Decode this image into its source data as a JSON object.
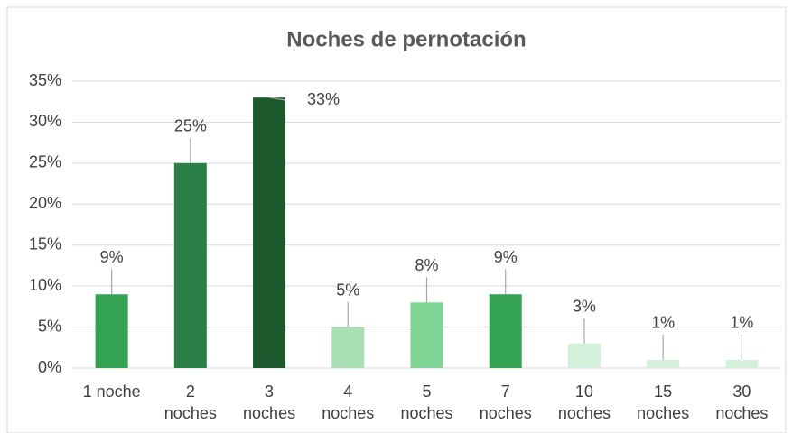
{
  "chart_data": {
    "type": "bar",
    "title": "Noches de pernotación",
    "categories": [
      [
        "1 noche"
      ],
      [
        "2",
        "noches"
      ],
      [
        "3",
        "noches"
      ],
      [
        "4",
        "noches"
      ],
      [
        "5",
        "noches"
      ],
      [
        "7",
        "noches"
      ],
      [
        "10",
        "noches"
      ],
      [
        "15",
        "noches"
      ],
      [
        "30",
        "noches"
      ]
    ],
    "values": [
      9,
      25,
      33,
      5,
      8,
      9,
      3,
      1,
      1
    ],
    "value_labels": [
      "9%",
      "25%",
      "33%",
      "5%",
      "8%",
      "9%",
      "3%",
      "1%",
      "1%"
    ],
    "colors": [
      "#33a352",
      "#2a8046",
      "#1c5a2e",
      "#a8e0b4",
      "#7fd494",
      "#33a352",
      "#d3f0da",
      "#d3f0da",
      "#d3f0da"
    ],
    "ylim": [
      0,
      35
    ],
    "yticks": [
      {
        "value": 0,
        "label": "0%"
      },
      {
        "value": 5,
        "label": "5%"
      },
      {
        "value": 10,
        "label": "10%"
      },
      {
        "value": 15,
        "label": "15%"
      },
      {
        "value": 20,
        "label": "20%"
      },
      {
        "value": 25,
        "label": "25%"
      },
      {
        "value": 30,
        "label": "30%"
      },
      {
        "value": 35,
        "label": "35%"
      }
    ],
    "grid": true
  }
}
